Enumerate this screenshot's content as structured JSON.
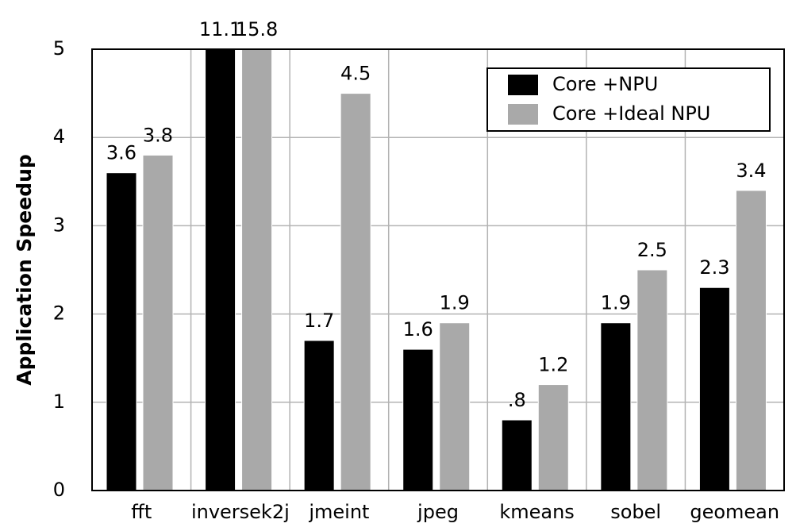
{
  "chart_data": {
    "type": "bar",
    "y_label": "Application Speedup",
    "categories": [
      "fft",
      "inversek2j",
      "jmeint",
      "jpeg",
      "kmeans",
      "sobel",
      "geomean"
    ],
    "series": [
      {
        "name": "Core +NPU",
        "color": "#000000",
        "values": [
          3.6,
          11.1,
          1.7,
          1.6,
          0.8,
          1.9,
          2.3
        ],
        "value_labels": [
          "3.6",
          "11.1",
          "1.7",
          "1.6",
          ".8",
          "1.9",
          "2.3"
        ]
      },
      {
        "name": "Core +Ideal NPU",
        "color": "#a9a9a9",
        "values": [
          3.8,
          15.8,
          4.5,
          1.9,
          1.2,
          2.5,
          3.4
        ],
        "value_labels": [
          "3.8",
          "15.8",
          "4.5",
          "1.9",
          "1.2",
          "2.5",
          "3.4"
        ]
      }
    ],
    "ylim": [
      0,
      5
    ],
    "yticks": [
      0,
      1,
      2,
      3,
      4,
      5
    ],
    "grid": true,
    "legend": "upper right"
  }
}
